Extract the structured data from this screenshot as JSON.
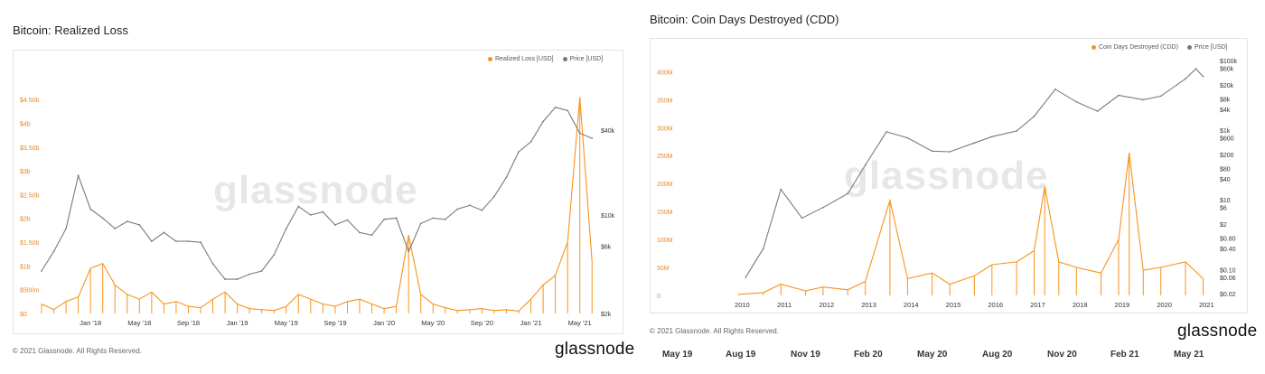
{
  "left_panel": {
    "title": "Bitcoin: Realized Loss",
    "watermark": "glassnode",
    "footer": "© 2021 Glassnode. All Rights Reserved.",
    "brand": "glassnode"
  },
  "right_panel": {
    "title": "Bitcoin: Coin Days Destroyed (CDD)",
    "watermark": "glassnode",
    "footer": "© 2021 Glassnode. All Rights Reserved.",
    "brand": "glassnode"
  },
  "bottom_strip": [
    "May 19",
    "Aug 19",
    "Nov 19",
    "Feb 20",
    "May 20",
    "Aug 20",
    "Nov 20",
    "Feb 21",
    "May 21"
  ],
  "colors": {
    "orange": "#f7931a",
    "grey": "#7a7a7a",
    "axis_orange": "#e8862a"
  },
  "chart_data": [
    {
      "type": "line",
      "title": "Bitcoin: Realized Loss",
      "x_ticks": [
        "Jan '18",
        "May '18",
        "Sep '18",
        "Jan '19",
        "May '19",
        "Sep '19",
        "Jan '20",
        "May '20",
        "Sep '20",
        "Jan '21",
        "May '21"
      ],
      "y_left_ticks": [
        "$0",
        "$500m",
        "$1b",
        "$1.50b",
        "$2b",
        "$2.50b",
        "$3b",
        "$3.50b",
        "$4b",
        "$4.50b"
      ],
      "y_left_range": [
        0,
        4750000000
      ],
      "y_right_ticks": [
        "$2k",
        "$6k",
        "$10k",
        "$40k"
      ],
      "y_right_scale": "log",
      "grid": false,
      "legend_position": "top-right",
      "series": [
        {
          "name": "Realized Loss [USD]",
          "axis": "left",
          "x": [
            "2017-09",
            "2017-10",
            "2017-11",
            "2017-12",
            "2018-01",
            "2018-02",
            "2018-03",
            "2018-04",
            "2018-05",
            "2018-06",
            "2018-07",
            "2018-08",
            "2018-09",
            "2018-10",
            "2018-11",
            "2018-12",
            "2019-01",
            "2019-02",
            "2019-03",
            "2019-04",
            "2019-05",
            "2019-06",
            "2019-07",
            "2019-08",
            "2019-09",
            "2019-10",
            "2019-11",
            "2019-12",
            "2020-01",
            "2020-02",
            "2020-03",
            "2020-04",
            "2020-05",
            "2020-06",
            "2020-07",
            "2020-08",
            "2020-09",
            "2020-10",
            "2020-11",
            "2020-12",
            "2021-01",
            "2021-02",
            "2021-03",
            "2021-04",
            "2021-05",
            "2021-06"
          ],
          "values": [
            200000000,
            80000000,
            250000000,
            350000000,
            950000000,
            1050000000,
            600000000,
            400000000,
            300000000,
            450000000,
            200000000,
            250000000,
            150000000,
            120000000,
            300000000,
            450000000,
            200000000,
            100000000,
            80000000,
            60000000,
            150000000,
            400000000,
            300000000,
            200000000,
            150000000,
            250000000,
            300000000,
            200000000,
            100000000,
            150000000,
            1650000000,
            400000000,
            200000000,
            120000000,
            60000000,
            80000000,
            100000000,
            60000000,
            80000000,
            50000000,
            300000000,
            600000000,
            800000000,
            1500000000,
            4550000000,
            1100000000
          ]
        },
        {
          "name": "Price [USD]",
          "axis": "right",
          "x": [
            "2017-09",
            "2017-10",
            "2017-11",
            "2017-12",
            "2018-01",
            "2018-02",
            "2018-03",
            "2018-04",
            "2018-05",
            "2018-06",
            "2018-07",
            "2018-08",
            "2018-09",
            "2018-10",
            "2018-11",
            "2018-12",
            "2019-01",
            "2019-02",
            "2019-03",
            "2019-04",
            "2019-05",
            "2019-06",
            "2019-07",
            "2019-08",
            "2019-09",
            "2019-10",
            "2019-11",
            "2019-12",
            "2020-01",
            "2020-02",
            "2020-03",
            "2020-04",
            "2020-05",
            "2020-06",
            "2020-07",
            "2020-08",
            "2020-09",
            "2020-10",
            "2020-11",
            "2020-12",
            "2021-01",
            "2021-02",
            "2021-03",
            "2021-04",
            "2021-05",
            "2021-06"
          ],
          "values": [
            4000,
            5500,
            8000,
            19000,
            11000,
            9500,
            8000,
            9000,
            8500,
            6500,
            7500,
            6500,
            6500,
            6400,
            4500,
            3500,
            3500,
            3800,
            4000,
            5200,
            8000,
            11500,
            10000,
            10500,
            8500,
            9200,
            7500,
            7200,
            9300,
            9500,
            5500,
            8700,
            9500,
            9300,
            11000,
            11700,
            10800,
            13500,
            18500,
            28000,
            33000,
            46000,
            58000,
            55000,
            38000,
            35000
          ]
        }
      ]
    },
    {
      "type": "line",
      "title": "Bitcoin: Coin Days Destroyed (CDD)",
      "x_ticks": [
        "2010",
        "2011",
        "2012",
        "2013",
        "2014",
        "2015",
        "2016",
        "2017",
        "2018",
        "2019",
        "2020",
        "2021"
      ],
      "y_left_ticks": [
        "0",
        "50M",
        "100M",
        "150M",
        "200M",
        "250M",
        "300M",
        "350M",
        "400M"
      ],
      "y_left_range": [
        0,
        420000000
      ],
      "y_right_ticks": [
        "$0.02",
        "$0.06",
        "$0.10",
        "$0.40",
        "$0.80",
        "$2",
        "$6",
        "$10",
        "$40",
        "$80",
        "$200",
        "$600",
        "$1k",
        "$4k",
        "$8k",
        "$20k",
        "$60k",
        "$100k"
      ],
      "y_right_scale": "log",
      "grid": false,
      "legend_position": "top-right",
      "series": [
        {
          "name": "Coin Days Destroyed (CDD)",
          "axis": "left",
          "x": [
            "2010-06",
            "2011-01",
            "2011-06",
            "2012-01",
            "2012-06",
            "2013-01",
            "2013-06",
            "2014-01",
            "2014-06",
            "2015-01",
            "2015-06",
            "2016-01",
            "2016-06",
            "2017-01",
            "2017-06",
            "2017-09",
            "2018-01",
            "2018-06",
            "2019-01",
            "2019-06",
            "2019-09",
            "2020-01",
            "2020-06",
            "2021-01",
            "2021-06"
          ],
          "values": [
            2000000,
            5000000,
            20000000,
            8000000,
            15000000,
            10000000,
            25000000,
            170000000,
            30000000,
            40000000,
            20000000,
            35000000,
            55000000,
            60000000,
            80000000,
            195000000,
            60000000,
            50000000,
            40000000,
            100000000,
            255000000,
            45000000,
            50000000,
            60000000,
            30000000
          ]
        },
        {
          "name": "Price [USD]",
          "axis": "right",
          "x": [
            "2010-08",
            "2011-01",
            "2011-06",
            "2011-12",
            "2012-06",
            "2013-01",
            "2013-06",
            "2013-12",
            "2014-06",
            "2015-01",
            "2015-06",
            "2016-01",
            "2016-06",
            "2017-01",
            "2017-06",
            "2017-12",
            "2018-06",
            "2018-12",
            "2019-06",
            "2020-01",
            "2020-06",
            "2021-01",
            "2021-04",
            "2021-06"
          ],
          "values": [
            0.06,
            0.4,
            20,
            3,
            6,
            15,
            100,
            900,
            600,
            250,
            240,
            430,
            650,
            950,
            2500,
            15000,
            6500,
            3500,
            10000,
            7500,
            9500,
            30000,
            58000,
            35000
          ]
        }
      ]
    }
  ]
}
